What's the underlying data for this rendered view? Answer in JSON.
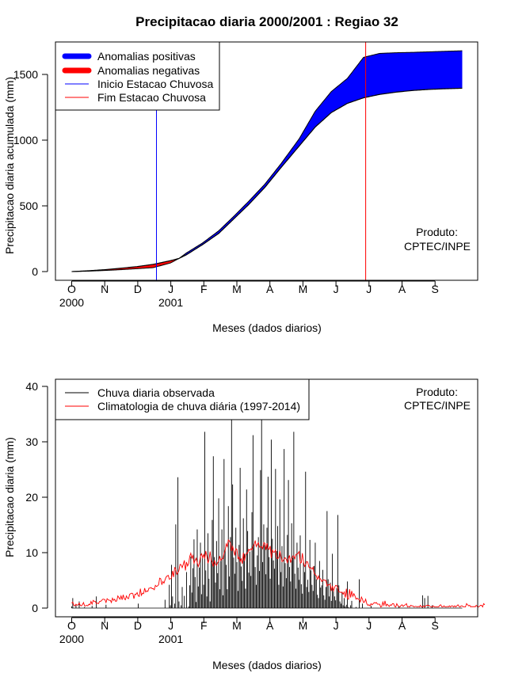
{
  "title": "Precipitacao diaria 2000/2001 : Regiao 32",
  "product": {
    "line1": "Produto:",
    "line2": "CPTEC/INPE"
  },
  "month_ticks": [
    "O",
    "N",
    "D",
    "J",
    "F",
    "M",
    "A",
    "M",
    "J",
    "J",
    "A",
    "S"
  ],
  "year_ticks": [
    {
      "month_index": 0,
      "label": "2000"
    },
    {
      "month_index": 3,
      "label": "2001"
    }
  ],
  "colors": {
    "positive": "#0000ff",
    "negative": "#ff0000",
    "observed": "#000000",
    "climatology": "#ff0000",
    "start": "#0000ff",
    "end": "#ff0000"
  },
  "chart_data": [
    {
      "type": "area",
      "title": "Precipitacao diaria 2000/2001 : Regiao 32",
      "xlabel": "Meses (dados diarios)",
      "ylabel": "Precipitacao diaria acumulada (mm)",
      "ylim": [
        0,
        1700
      ],
      "yticks": [
        0,
        500,
        1000,
        1500
      ],
      "days": 365,
      "legend": [
        "Anomalias positivas",
        "Anomalias negativas",
        "Inicio Estacao Chuvosa",
        "Fim Estacao Chuvosa"
      ],
      "legend_position": "top-left",
      "rainy_season_start_day": 79,
      "rainy_season_end_day": 274,
      "series": [
        {
          "name": "Climatologia acumulada",
          "x": [
            0,
            15,
            30,
            45,
            61,
            76,
            92,
            100,
            107,
            122,
            137,
            151,
            165,
            180,
            195,
            212,
            227,
            242,
            257,
            272,
            287,
            302,
            318,
            333,
            348,
            364
          ],
          "values": [
            0,
            6,
            14,
            25,
            38,
            55,
            83,
            100,
            128,
            205,
            290,
            400,
            510,
            640,
            790,
            955,
            1100,
            1210,
            1280,
            1322,
            1348,
            1365,
            1378,
            1386,
            1391,
            1395
          ]
        },
        {
          "name": "Observado acumulado",
          "x": [
            0,
            15,
            30,
            45,
            61,
            76,
            92,
            100,
            107,
            122,
            137,
            151,
            165,
            180,
            195,
            212,
            227,
            242,
            257,
            272,
            287,
            302,
            318,
            333,
            348,
            364
          ],
          "values": [
            0,
            3,
            8,
            14,
            22,
            30,
            65,
            100,
            142,
            218,
            310,
            420,
            535,
            665,
            820,
            1010,
            1220,
            1370,
            1470,
            1630,
            1660,
            1665,
            1668,
            1672,
            1676,
            1680
          ]
        }
      ]
    },
    {
      "type": "line",
      "xlabel": "Meses (dados diarios)",
      "ylabel": "Precipitacao diaria (mm)",
      "ylim": [
        0,
        40
      ],
      "yticks": [
        0,
        10,
        20,
        30,
        40
      ],
      "days": 365,
      "legend": [
        "Chuva diaria observada",
        "Climatologia de chuva diária (1997-2014)"
      ],
      "legend_position": "top-left",
      "series": [
        {
          "name": "Chuva diaria observada",
          "values": [
            0.3,
            1.8,
            0,
            0,
            0.5,
            0,
            0,
            1.2,
            0,
            0,
            0,
            0,
            0.2,
            0,
            0,
            0,
            0,
            0,
            0,
            0.4,
            0,
            0,
            0,
            2.1,
            0,
            0,
            0,
            0,
            0,
            0,
            0,
            0,
            0.6,
            0,
            0,
            0,
            0,
            0,
            0,
            0,
            0,
            0,
            0,
            0,
            0,
            0,
            0,
            0,
            0,
            0,
            0,
            0,
            0,
            0,
            0,
            0,
            0,
            0,
            0,
            0,
            0,
            0,
            0.8,
            0,
            0,
            0,
            0,
            0,
            0,
            0,
            0,
            0,
            0,
            0,
            0,
            0,
            0,
            0,
            0,
            0,
            0,
            0,
            0,
            0,
            0,
            0,
            0,
            1.5,
            0,
            0,
            0,
            4.2,
            0.5,
            7.8,
            2.1,
            0,
            0.8,
            15.1,
            0,
            23.6,
            1.2,
            0,
            0.5,
            3.8,
            0,
            2.2,
            0,
            6.5,
            0,
            0.3,
            4.1,
            9.3,
            2.8,
            7.2,
            12.4,
            5.6,
            1.1,
            14.2,
            3.9,
            7.3,
            11.8,
            2.5,
            9.1,
            4.2,
            31.8,
            6.8,
            2.1,
            13.5,
            5.3,
            1.2,
            8.7,
            15.9,
            27.4,
            9.2,
            4.6,
            12.1,
            6.3,
            19.8,
            3.4,
            8.5,
            14.2,
            2.3,
            26.9,
            10.5,
            7.8,
            3.4,
            18.4,
            5.7,
            12.8,
            34.6,
            22.3,
            9.1,
            6.2,
            14.5,
            8.3,
            3.1,
            11.4,
            25.3,
            7.5,
            4.9,
            16.2,
            9.8,
            3.5,
            21.4,
            13.9,
            6.4,
            10.2,
            5.8,
            17.3,
            31.2,
            11.5,
            7.4,
            4.2,
            9.5,
            12.8,
            6.7,
            24.9,
            34.8,
            8.3,
            15.1,
            11.4,
            6.1,
            14.5,
            23.7,
            9.2,
            5.3,
            30.4,
            12.5,
            8.6,
            7.1,
            25.1,
            10.3,
            14.8,
            4.2,
            19.6,
            6.5,
            11.2,
            3.9,
            28.7,
            8.1,
            5.4,
            13.2,
            23.1,
            7.4,
            4.8,
            15.3,
            9.1,
            31.8,
            6.2,
            3.5,
            11.8,
            7.3,
            5.1,
            13.1,
            4.3,
            2.6,
            8.2,
            6.5,
            24.6,
            3.8,
            5.1,
            2.9,
            12.3,
            6.8,
            4.2,
            3.1,
            7.6,
            11.8,
            5.2,
            2.4,
            1.8,
            8.5,
            3.7,
            4.1,
            6.9,
            2.3,
            1.5,
            3.8,
            17.5,
            5.2,
            2.1,
            4.6,
            1.3,
            9.8,
            3.2,
            2.1,
            1.4,
            3.6,
            16.8,
            4.1,
            1.2,
            0.8,
            2.9,
            0.5,
            1.8,
            0.3,
            0.6,
            4.8,
            0.2,
            0,
            0.5,
            1.3,
            0,
            0,
            0,
            0.2,
            0,
            0,
            5.2,
            0,
            0,
            0.8,
            0,
            0,
            0,
            0,
            0,
            0,
            0,
            0.4,
            0,
            0,
            0,
            0,
            0,
            0,
            0,
            0,
            0,
            0,
            0,
            0,
            0,
            0,
            0,
            0,
            0,
            0,
            0,
            0,
            0,
            0,
            0,
            0,
            0,
            0.3,
            0,
            0,
            0,
            0,
            0,
            0,
            0,
            0,
            0,
            0,
            0,
            0,
            0,
            0,
            0,
            0,
            0,
            0,
            0,
            0,
            0,
            2.3,
            0,
            1.8,
            0,
            0,
            2.2,
            0,
            0,
            0,
            0.5,
            0,
            0
          ]
        },
        {
          "name": "Climatologia de chuva diária (1997-2014)",
          "values": [
            0.9,
            1.1,
            0.5,
            0.4,
            0.7,
            0.5,
            0.6,
            0.9,
            0.5,
            0.4,
            0.6,
            1,
            0.4,
            0.4,
            0.5,
            0.4,
            0.7,
            0.6,
            1.2,
            0.7,
            1.4,
            1.2,
            1.2,
            0.8,
            0.9,
            0.8,
            1.2,
            1.2,
            1.4,
            1.6,
            1.6,
            1.5,
            1,
            1.7,
            1.5,
            1.4,
            1.4,
            1,
            1.8,
            1.4,
            1.6,
            1.2,
            1.3,
            2.2,
            1.9,
            1.6,
            2.2,
            1.5,
            2.4,
            1.7,
            1.5,
            2.2,
            1.8,
            1.7,
            2.5,
            2.6,
            2.7,
            2.6,
            1.7,
            2.5,
            2.5,
            2.8,
            2.2,
            2.1,
            3.5,
            2.3,
            2.7,
            2.6,
            3.6,
            2.9,
            3.1,
            3,
            3.6,
            3.6,
            3.7,
            3.5,
            3.5,
            3.3,
            4.1,
            3.9,
            4,
            4.2,
            5.4,
            5.3,
            4.2,
            4.8,
            4.5,
            5.1,
            5.6,
            5.8,
            5.9,
            5.2,
            5.3,
            5.4,
            6.7,
            5.6,
            7.3,
            7.1,
            6.1,
            6.4,
            6.8,
            7.9,
            7.8,
            7.3,
            7.9,
            8.6,
            6.8,
            8.3,
            7.6,
            8,
            9.3,
            9.9,
            9,
            9.5,
            8.1,
            8.6,
            9,
            8.2,
            7.5,
            8.1,
            9.4,
            9.8,
            9.1,
            9.7,
            8.9,
            10.3,
            9.4,
            8.1,
            8.7,
            10.2,
            8.6,
            8.2,
            7.5,
            8.6,
            7.9,
            7.7,
            8.2,
            8.4,
            9.4,
            8.6,
            8.9,
            8.9,
            9.9,
            10.4,
            11.6,
            11.1,
            12.3,
            12.1,
            11.7,
            10.3,
            11.1,
            10.4,
            9.5,
            10.7,
            10.6,
            8.9,
            9.2,
            8.4,
            8.9,
            8,
            10,
            8.5,
            9.6,
            9.9,
            9.9,
            10.6,
            10.4,
            10.7,
            10.5,
            11.2,
            11.4,
            12.2,
            11.1,
            11.5,
            11.8,
            11,
            11,
            11.1,
            10.7,
            11.8,
            11.7,
            10.5,
            11.7,
            10.7,
            10.6,
            11.2,
            9,
            10.5,
            10.1,
            10.1,
            10.5,
            9.1,
            8.9,
            9.1,
            10.3,
            9.4,
            8.4,
            8.5,
            8.9,
            9.1,
            8.8,
            8.2,
            8.9,
            9.5,
            8.2,
            8.8,
            9.4,
            9.4,
            8.9,
            9.7,
            9.7,
            9.9,
            10.2,
            8.1,
            8.2,
            9.9,
            8.4,
            7.5,
            7.8,
            8.4,
            8.3,
            7.4,
            7.2,
            7.3,
            7,
            7.4,
            6.2,
            6.1,
            5.8,
            5.2,
            5.8,
            5.2,
            5.3,
            4.8,
            5,
            5.1,
            5,
            5,
            4,
            4.2,
            4.2,
            4.3,
            3.1,
            4,
            3.1,
            3.7,
            4.1,
            4.1,
            3.6,
            2.9,
            2.9,
            2.8,
            2.9,
            2.5,
            2.9,
            1.9,
            3.5,
            1.7,
            1.6,
            3.4,
            1.9,
            3.1,
            2.1,
            2.6,
            2.2,
            1.6,
            1.8,
            1.6,
            1.6,
            1.1,
            2,
            1.6,
            1,
            1.1,
            1.6,
            0.8,
            0.5,
            0.6,
            0.4,
            0.8,
            0.6,
            0.8,
            1,
            0.9,
            1,
            0.7,
            0.7,
            0.7,
            0.2,
            0.3,
            1.1,
            0.5,
            1.3,
            0.4,
            0.7,
            0.5,
            0.3,
            0.6,
            0.5,
            0.8,
            0.8,
            0.3,
            0.2,
            0.8,
            0.4,
            0.3,
            0.2,
            0.5,
            0.6,
            0.3,
            0.5,
            0.6,
            0.8,
            0.2,
            0.3,
            0.2,
            0.5,
            0.4,
            0.4,
            0.2,
            0.3,
            0.3,
            0.2,
            0.3,
            0.2,
            0.5,
            0.2,
            0.2,
            0.4,
            0.2,
            0.4,
            0.5,
            0.5,
            0.5,
            0.3,
            0.2,
            0.2,
            0.4,
            0.2,
            0.2,
            0.2,
            0.2,
            0.2,
            0.5,
            0.6,
            0.2,
            0.2,
            0.4,
            0.2,
            0.2,
            0.3,
            0.2,
            0.4,
            0.2,
            0.4,
            0.4,
            0.2,
            0.4,
            0.2,
            0.4,
            0.6,
            0.3,
            0.2,
            0.4,
            0.4,
            0.2,
            0.2,
            0.2,
            0.8,
            0.6,
            0.4,
            0.5,
            0.2,
            0.3,
            0.2,
            0.3,
            0.2,
            0.5,
            0.3,
            0.2,
            0.3,
            0.5,
            0.5,
            0.2,
            0.8,
            0.6
          ]
        }
      ]
    }
  ]
}
